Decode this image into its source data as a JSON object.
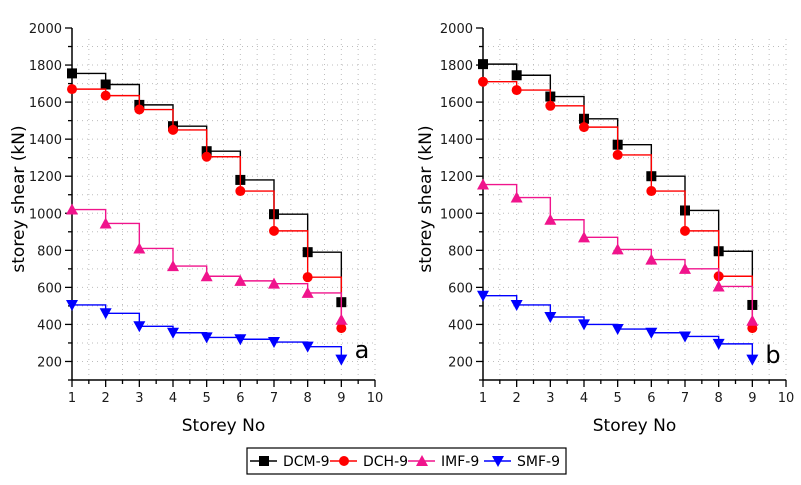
{
  "chart_data": [
    {
      "type": "line",
      "style": "step",
      "panel_label": "a",
      "title": "",
      "xlabel": "Storey No",
      "ylabel": "storey shear (kN)",
      "xlim": [
        1,
        10
      ],
      "ylim": [
        100,
        2000
      ],
      "xticks": [
        1,
        2,
        3,
        4,
        5,
        6,
        7,
        8,
        9,
        10
      ],
      "yticks": [
        200,
        400,
        600,
        800,
        1000,
        1200,
        1400,
        1600,
        1800,
        2000
      ],
      "grid": true,
      "x": [
        1,
        2,
        3,
        4,
        5,
        6,
        7,
        8,
        9
      ],
      "series": [
        {
          "name": "DCM-9",
          "color": "#000000",
          "marker": "square",
          "values": [
            1755,
            1695,
            1585,
            1470,
            1335,
            1180,
            995,
            790,
            520
          ]
        },
        {
          "name": "DCH-9",
          "color": "#ff0000",
          "marker": "circle",
          "values": [
            1670,
            1635,
            1560,
            1450,
            1305,
            1120,
            905,
            655,
            380
          ]
        },
        {
          "name": "IMF-9",
          "color": "#f0148c",
          "marker": "triangle-up",
          "values": [
            1020,
            945,
            810,
            715,
            660,
            635,
            620,
            570,
            425
          ]
        },
        {
          "name": "SMF-9",
          "color": "#0000ff",
          "marker": "triangle-down",
          "values": [
            505,
            460,
            390,
            355,
            330,
            320,
            305,
            280,
            210
          ]
        }
      ]
    },
    {
      "type": "line",
      "style": "step",
      "panel_label": "b",
      "title": "",
      "xlabel": "Storey No",
      "ylabel": "storey shear (kN)",
      "xlim": [
        1,
        10
      ],
      "ylim": [
        100,
        2000
      ],
      "xticks": [
        1,
        2,
        3,
        4,
        5,
        6,
        7,
        8,
        9,
        10
      ],
      "yticks": [
        200,
        400,
        600,
        800,
        1000,
        1200,
        1400,
        1600,
        1800,
        2000
      ],
      "grid": true,
      "x": [
        1,
        2,
        3,
        4,
        5,
        6,
        7,
        8,
        9
      ],
      "series": [
        {
          "name": "DCM-9",
          "color": "#000000",
          "marker": "square",
          "values": [
            1805,
            1745,
            1630,
            1510,
            1370,
            1200,
            1015,
            795,
            505
          ]
        },
        {
          "name": "DCH-9",
          "color": "#ff0000",
          "marker": "circle",
          "values": [
            1710,
            1665,
            1580,
            1465,
            1315,
            1120,
            905,
            660,
            380
          ]
        },
        {
          "name": "IMF-9",
          "color": "#f0148c",
          "marker": "triangle-up",
          "values": [
            1155,
            1085,
            965,
            870,
            805,
            750,
            700,
            605,
            420
          ]
        },
        {
          "name": "SMF-9",
          "color": "#0000ff",
          "marker": "triangle-down",
          "values": [
            555,
            505,
            440,
            400,
            375,
            355,
            335,
            295,
            210
          ]
        }
      ]
    }
  ],
  "legend": {
    "placement": "bottom-center",
    "entries": [
      {
        "label": "DCM-9",
        "color": "#000000",
        "marker": "square"
      },
      {
        "label": "DCH-9",
        "color": "#ff0000",
        "marker": "circle"
      },
      {
        "label": "IMF-9",
        "color": "#f0148c",
        "marker": "triangle-up"
      },
      {
        "label": "SMF-9",
        "color": "#0000ff",
        "marker": "triangle-down"
      }
    ]
  }
}
